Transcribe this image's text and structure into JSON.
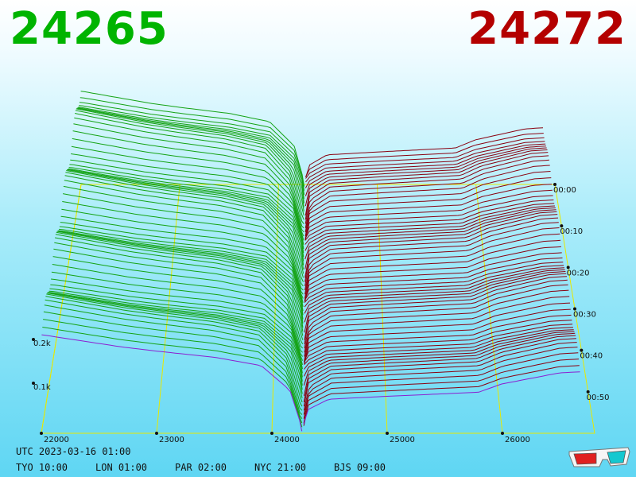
{
  "prices": {
    "bid": "24265",
    "ask": "24272"
  },
  "colors": {
    "bid": "#00b400",
    "ask": "#b40000",
    "bid_line": "#15a315",
    "ask_line": "#8a0010",
    "grid": "#e8e800",
    "latest": "#8c1fd0"
  },
  "chart_data": {
    "type": "3d-order-book-depth",
    "x_ticks": [
      "22000",
      "23000",
      "24000",
      "25000",
      "26000"
    ],
    "x_tick_values": [
      22000,
      23000,
      24000,
      25000,
      26000
    ],
    "depth_ticks": [
      "0.1k",
      "0.2k"
    ],
    "depth_tick_values": [
      100,
      200
    ],
    "time_ticks": [
      "00:00",
      "00:10",
      "00:20",
      "00:30",
      "00:40",
      "00:50"
    ],
    "time_range_minutes": [
      0,
      60
    ],
    "snapshots": 60,
    "spread_center": 24268,
    "bid_depth_levels": [
      {
        "price": 22000,
        "depth": 235
      },
      {
        "price": 22300,
        "depth": 222
      },
      {
        "price": 22700,
        "depth": 205
      },
      {
        "price": 23000,
        "depth": 195
      },
      {
        "price": 23500,
        "depth": 180
      },
      {
        "price": 23900,
        "depth": 160
      },
      {
        "price": 24150,
        "depth": 100
      },
      {
        "price": 24265,
        "depth": 0
      }
    ],
    "ask_depth_levels": [
      {
        "price": 24272,
        "depth": 0
      },
      {
        "price": 24300,
        "depth": 50
      },
      {
        "price": 24500,
        "depth": 78
      },
      {
        "price": 25000,
        "depth": 85
      },
      {
        "price": 25800,
        "depth": 95
      },
      {
        "price": 26000,
        "depth": 115
      },
      {
        "price": 26500,
        "depth": 142
      },
      {
        "price": 26700,
        "depth": 145
      }
    ]
  },
  "footer": {
    "utc": "UTC 2023-03-16 01:00",
    "tyo": "TYO 10:00",
    "lon": "LON 01:00",
    "par": "PAR 02:00",
    "nyc": "NYC 21:00",
    "bjs": "BJS 09:00"
  },
  "icons": {
    "glasses": "3d-glasses-icon"
  }
}
